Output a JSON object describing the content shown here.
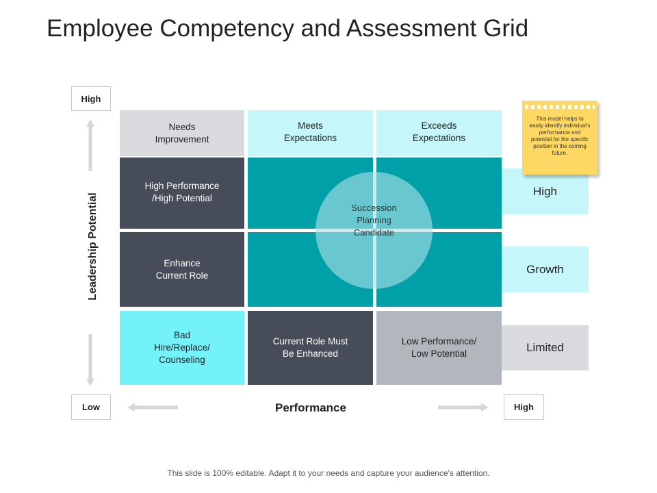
{
  "title": "Employee Competency and Assessment Grid",
  "y_axis": {
    "label": "Leadership Potential",
    "high_label": "High",
    "low_label": "Low"
  },
  "x_axis": {
    "label": "Performance",
    "high_label": "High"
  },
  "column_headers": [
    "Needs\nImprovement",
    "Meets\nExpectations",
    "Exceeds\nExpectations"
  ],
  "grid": {
    "row1_col1": "High Performance\n/High Potential",
    "row2_col1": "Enhance\nCurrent Role",
    "row3_col1": "Bad\nHire/Replace/\nCounseling",
    "row3_col2": "Current Role Must\nBe Enhanced",
    "row3_col3": "Low Performance/\nLow Potential",
    "center_circle": "Succession\nPlanning\nCandidate"
  },
  "categories": [
    "High",
    "Growth",
    "Limited"
  ],
  "note": "This model helps to easily identify individual's performance and potential for the specific position in the coming future.",
  "footer": "This slide is 100% editable. Adapt it to your needs and capture your audience's attention.",
  "colors": {
    "dark": "#474d58",
    "teal": "#00a0a8",
    "light_cyan": "#c4f6fa",
    "bright_cyan": "#74f2fa",
    "light_gray": "#d8dadd",
    "mid_gray": "#b2b6bd",
    "note_yellow": "#fdd865",
    "arrow_gray": "#d6d6d6"
  },
  "icons": {
    "arrow_up": "arrow-up-icon",
    "arrow_down": "arrow-down-icon",
    "arrow_left": "arrow-left-icon",
    "arrow_right": "arrow-right-icon"
  }
}
